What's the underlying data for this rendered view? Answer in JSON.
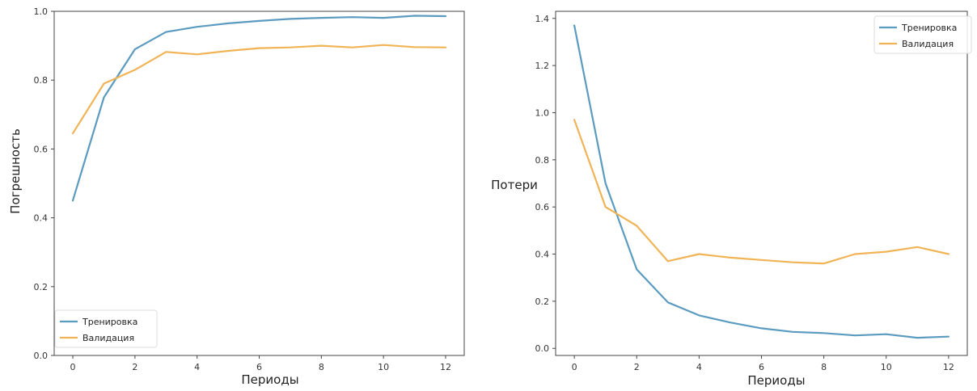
{
  "chart_data": [
    {
      "type": "line",
      "xlabel": "Периоды",
      "ylabel": "Погрешность",
      "xlim": [
        -0.6,
        12.6
      ],
      "ylim": [
        0.0,
        1.0
      ],
      "xticks": [
        0,
        2,
        4,
        6,
        8,
        10,
        12
      ],
      "yticks": [
        0.0,
        0.2,
        0.4,
        0.6,
        0.8,
        1.0
      ],
      "ytick_labels": [
        "0.0",
        "0.2",
        "0.4",
        "0.6",
        "0.8",
        "1.0"
      ],
      "grid": false,
      "legend_position": "bottom-left",
      "x": [
        0,
        1,
        2,
        3,
        4,
        5,
        6,
        7,
        8,
        9,
        10,
        11,
        12
      ],
      "series": [
        {
          "name": "Тренировка",
          "color": "#5b9bc0",
          "values": [
            0.45,
            0.75,
            0.89,
            0.94,
            0.955,
            0.965,
            0.972,
            0.978,
            0.981,
            0.983,
            0.981,
            0.987,
            0.986
          ]
        },
        {
          "name": "Валидация",
          "color": "#f0b456",
          "values": [
            0.645,
            0.79,
            0.83,
            0.882,
            0.875,
            0.885,
            0.893,
            0.895,
            0.9,
            0.895,
            0.902,
            0.896,
            0.895
          ]
        }
      ]
    },
    {
      "type": "line",
      "xlabel": "Периоды",
      "ylabel": "Потери",
      "xlim": [
        -0.6,
        12.6
      ],
      "ylim": [
        -0.03,
        1.43
      ],
      "xticks": [
        0,
        2,
        4,
        6,
        8,
        10,
        12
      ],
      "yticks": [
        0.0,
        0.2,
        0.4,
        0.6,
        0.8,
        1.0,
        1.2,
        1.4
      ],
      "ytick_labels": [
        "0.0",
        "0.2",
        "0.4",
        "0.6",
        "0.8",
        "1.0",
        "1.2",
        "1.4"
      ],
      "grid": false,
      "legend_position": "top-right",
      "x": [
        0,
        1,
        2,
        3,
        4,
        5,
        6,
        7,
        8,
        9,
        10,
        11,
        12
      ],
      "series": [
        {
          "name": "Тренировка",
          "color": "#5b9bc0",
          "values": [
            1.37,
            0.7,
            0.335,
            0.195,
            0.14,
            0.11,
            0.085,
            0.07,
            0.065,
            0.055,
            0.06,
            0.045,
            0.05
          ]
        },
        {
          "name": "Валидация",
          "color": "#f0b456",
          "values": [
            0.97,
            0.6,
            0.52,
            0.37,
            0.4,
            0.385,
            0.375,
            0.365,
            0.36,
            0.4,
            0.41,
            0.43,
            0.4
          ]
        }
      ]
    }
  ]
}
